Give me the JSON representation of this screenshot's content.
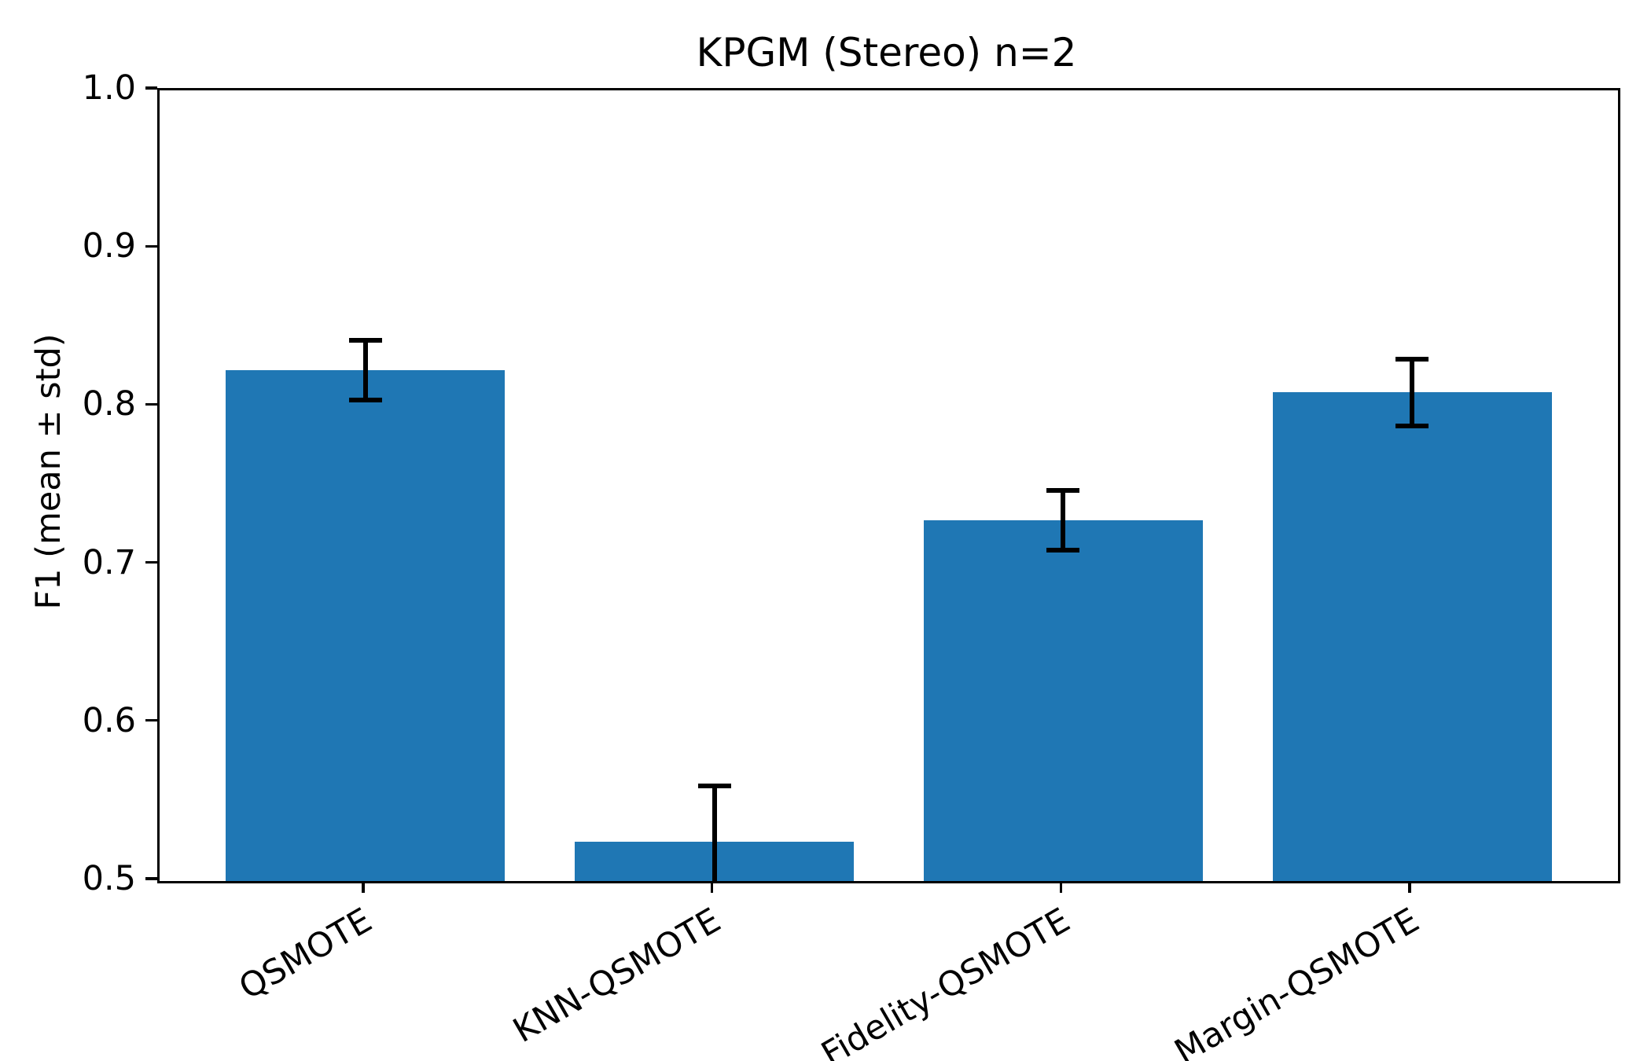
{
  "chart_data": {
    "type": "bar",
    "title": "KPGM (Stereo) n=2",
    "ylabel": "F1 (mean ± std)",
    "xlabel": "",
    "categories": [
      "QSMOTE",
      "KNN-QSMOTE",
      "Fidelity-QSMOTE",
      "Margin-QSMOTE"
    ],
    "series": [
      {
        "name": "F1 mean",
        "values": [
          0.823,
          0.525,
          0.728,
          0.809
        ],
        "errors": [
          0.019,
          0.035,
          0.019,
          0.021
        ]
      }
    ],
    "ylim": [
      0.5,
      1.0
    ],
    "yticks": [
      "1.0",
      "0.9",
      "0.8",
      "0.7",
      "0.6",
      "0.5"
    ],
    "ytick_values": [
      1.0,
      0.9,
      0.8,
      0.7,
      0.6,
      0.5
    ],
    "grid": false,
    "legend_position": "none",
    "bar_color": "#1f77b4",
    "error_color": "#000000",
    "x_label_rotation_deg": 30
  }
}
